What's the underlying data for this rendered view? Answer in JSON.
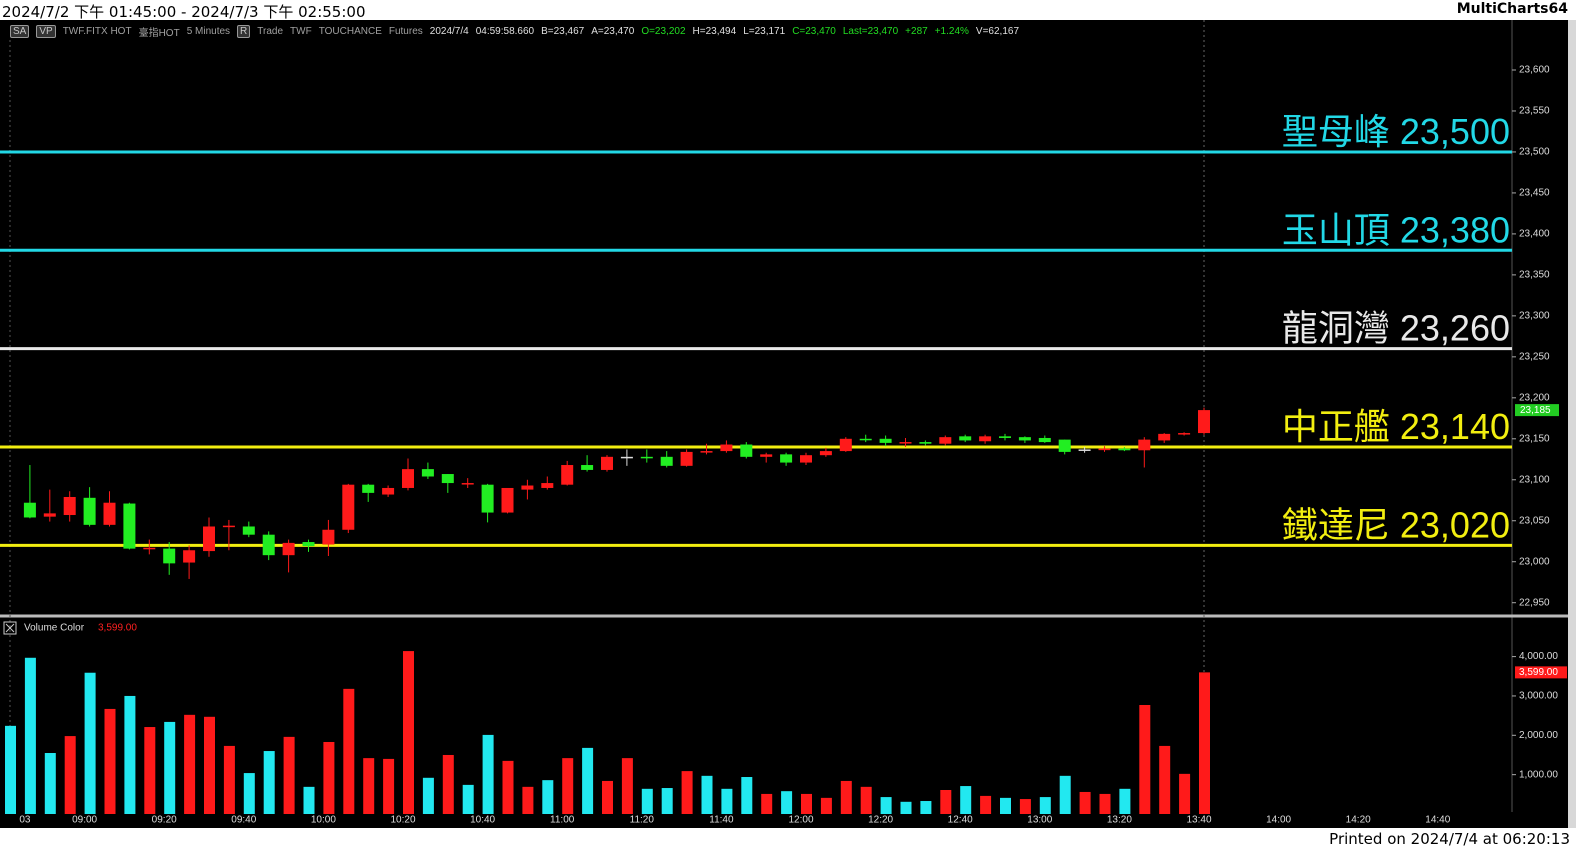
{
  "header": {
    "title": "2024/7/2 下午 01:45:00 - 2024/7/3 下午 02:55:00",
    "app": "MultiCharts64"
  },
  "toolbar": [
    {
      "text": "SA",
      "color": "#c8c8c8",
      "boxed": true
    },
    {
      "text": "VP",
      "color": "#c8c8c8",
      "boxed": true
    },
    {
      "text": "TWF.FITX HOT",
      "color": "#a0a0a0"
    },
    {
      "text": "臺指HOT",
      "color": "#a0a0a0"
    },
    {
      "text": "5 Minutes",
      "color": "#a0a0a0"
    },
    {
      "text": "R",
      "color": "#c8c8c8",
      "boxed": true
    },
    {
      "text": "Trade",
      "color": "#a0a0a0"
    },
    {
      "text": "TWF",
      "color": "#a0a0a0"
    },
    {
      "text": "TOUCHANCE",
      "color": "#a0a0a0"
    },
    {
      "text": "Futures",
      "color": "#a0a0a0"
    },
    {
      "text": "2024/7/4",
      "color": "#e0e0e0"
    },
    {
      "text": "04:59:58.660",
      "color": "#e0e0e0"
    },
    {
      "text": "B=23,467",
      "color": "#e0e0e0"
    },
    {
      "text": "A=23,470",
      "color": "#e0e0e0"
    },
    {
      "text": "O=23,202",
      "color": "#22dd22"
    },
    {
      "text": "H=23,494",
      "color": "#e0e0e0"
    },
    {
      "text": "L=23,171",
      "color": "#e0e0e0"
    },
    {
      "text": "C=23,470",
      "color": "#22dd22"
    },
    {
      "text": "Last=23,470",
      "color": "#22dd22"
    },
    {
      "text": "+287",
      "color": "#22dd22"
    },
    {
      "text": "+1.24%",
      "color": "#22dd22"
    },
    {
      "text": "V=62,167",
      "color": "#e0e0e0"
    }
  ],
  "footer": "Printed on 2024/7/4 at 06:20:13",
  "chart_data": [
    {
      "type": "candlestick",
      "up_color": "#ff1a1a",
      "down_color": "#22ee22",
      "open": [
        null,
        23072,
        23055,
        23057,
        23078,
        23045,
        23071,
        23016,
        23016,
        22999,
        23013,
        23043,
        23043,
        23033,
        23008,
        23024,
        23021,
        23039,
        23094,
        23082,
        23090,
        23113,
        23107,
        23095,
        23094,
        23060,
        23088,
        23090,
        23094,
        23118,
        23112,
        23128,
        23128,
        23128,
        23117,
        23134,
        23135,
        23143,
        23128,
        23131,
        23121,
        23130,
        23135,
        23150,
        23150,
        23145,
        23146,
        23144,
        23153,
        23147,
        23153,
        23152,
        23151,
        23149,
        23137,
        23137,
        23138,
        23136,
        23148,
        23156,
        23157
      ],
      "high": [
        null,
        23118,
        23088,
        23086,
        23091,
        23086,
        23072,
        23027,
        23024,
        23020,
        23054,
        23051,
        23049,
        23037,
        23027,
        23027,
        23051,
        23095,
        23095,
        23093,
        23126,
        23121,
        23107,
        23102,
        23095,
        23090,
        23100,
        23104,
        23123,
        23130,
        23130,
        23137,
        23137,
        23135,
        23137,
        23144,
        23148,
        23146,
        23133,
        23133,
        23133,
        23139,
        23152,
        23155,
        23154,
        23151,
        23148,
        23154,
        23155,
        23155,
        23156,
        23153,
        23154,
        23149,
        23140,
        23141,
        23140,
        23152,
        23157,
        23158,
        23188
      ],
      "low": [
        null,
        23053,
        23049,
        23049,
        23043,
        23043,
        23015,
        23009,
        22984,
        22979,
        23006,
        23014,
        23030,
        23002,
        22987,
        23012,
        23007,
        23035,
        23073,
        23079,
        23087,
        23101,
        23084,
        23090,
        23048,
        23059,
        23076,
        23088,
        23093,
        23110,
        23110,
        23117,
        23121,
        23115,
        23116,
        23131,
        23133,
        23126,
        23121,
        23117,
        23118,
        23128,
        23134,
        23146,
        23141,
        23140,
        23142,
        23142,
        23146,
        23144,
        23148,
        23145,
        23145,
        23131,
        23133,
        23134,
        23135,
        23115,
        23145,
        23154,
        23155
      ],
      "close": [
        null,
        23054,
        23059,
        23079,
        23045,
        23072,
        23016,
        23017,
        22998,
        23014,
        23043,
        23044,
        23033,
        23008,
        23023,
        23019,
        23039,
        23094,
        23084,
        23090,
        23113,
        23104,
        23096,
        23096,
        23060,
        23090,
        23093,
        23096,
        23118,
        23112,
        23128,
        23128,
        23127,
        23117,
        23134,
        23135,
        23143,
        23128,
        23131,
        23121,
        23130,
        23135,
        23150,
        23149,
        23145,
        23146,
        23144,
        23152,
        23148,
        23153,
        23151,
        23148,
        23146,
        23134,
        23137,
        23138,
        23136,
        23149,
        23156,
        23157,
        23185
      ],
      "ylim": [
        22935,
        23661
      ],
      "yticks": [
        {
          "value": 22950,
          "label": "22,950"
        },
        {
          "value": 23000,
          "label": "23,000"
        },
        {
          "value": 23050,
          "label": "23,050"
        },
        {
          "value": 23100,
          "label": "23,100"
        },
        {
          "value": 23150,
          "label": "23,150"
        },
        {
          "value": 23200,
          "label": "23,200"
        },
        {
          "value": 23250,
          "label": "23,250"
        },
        {
          "value": 23300,
          "label": "23,300"
        },
        {
          "value": 23350,
          "label": "23,350"
        },
        {
          "value": 23400,
          "label": "23,400"
        },
        {
          "value": 23450,
          "label": "23,450"
        },
        {
          "value": 23500,
          "label": "23,500"
        },
        {
          "value": 23550,
          "label": "23,550"
        },
        {
          "value": 23600,
          "label": "23,600"
        }
      ],
      "lines": [
        {
          "name": "聖母峰",
          "value": 23500,
          "label": "23,500",
          "color": "#22d8e6"
        },
        {
          "name": "玉山頂",
          "value": 23380,
          "label": "23,380",
          "color": "#22d8e6"
        },
        {
          "name": "龍洞灣",
          "value": 23260,
          "label": "23,260",
          "color": "#e8e8e8"
        },
        {
          "name": "中正艦",
          "value": 23140,
          "label": "23,140",
          "color": "#f2ee10"
        },
        {
          "name": "鐵達尼",
          "value": 23020,
          "label": "23,020",
          "color": "#f2ee10"
        }
      ],
      "last": {
        "value": 23185,
        "label": "23,185",
        "color": "#22cc22"
      }
    },
    {
      "type": "bar",
      "title": "Volume Color",
      "categories": [
        null,
        "03",
        null,
        null,
        "09:00",
        null,
        null,
        null,
        "09:20",
        null,
        null,
        null,
        "09:40",
        null,
        null,
        null,
        "10:00",
        null,
        null,
        null,
        "10:20",
        null,
        null,
        null,
        "10:40",
        null,
        null,
        null,
        "11:00",
        null,
        null,
        null,
        "11:20",
        null,
        null,
        null,
        "11:40",
        null,
        null,
        null,
        "12:00",
        null,
        null,
        null,
        "12:20",
        null,
        null,
        null,
        "12:40",
        null,
        null,
        null,
        "13:00",
        null,
        null,
        null,
        "13:20",
        null,
        null,
        null,
        "13:40",
        null,
        null,
        null,
        "14:00",
        null,
        null,
        null,
        "14:20",
        null,
        null,
        null,
        "14:40",
        null,
        null,
        null
      ],
      "values": [
        2240,
        3970,
        1550,
        1980,
        3590,
        2670,
        3000,
        2210,
        2340,
        2520,
        2470,
        1730,
        1040,
        1600,
        1960,
        690,
        1830,
        3180,
        1420,
        1400,
        4140,
        920,
        1500,
        740,
        2010,
        1350,
        690,
        860,
        1420,
        1680,
        840,
        1420,
        640,
        660,
        1090,
        970,
        640,
        940,
        510,
        580,
        510,
        410,
        840,
        690,
        430,
        310,
        330,
        610,
        710,
        460,
        410,
        380,
        430,
        970,
        560,
        510,
        640,
        2770,
        1730,
        1020,
        3599,
        null,
        null,
        null,
        null,
        null,
        null,
        null,
        null,
        null,
        null,
        null,
        null,
        null,
        null,
        null
      ],
      "colors": [
        "#22e8f0",
        "#22e8f0",
        "#22e8f0",
        "#ff1a1a",
        "#22e8f0",
        "#ff1a1a",
        "#22e8f0",
        "#ff1a1a",
        "#22e8f0",
        "#ff1a1a",
        "#ff1a1a",
        "#ff1a1a",
        "#22e8f0",
        "#22e8f0",
        "#ff1a1a",
        "#22e8f0",
        "#ff1a1a",
        "#ff1a1a",
        "#ff1a1a",
        "#ff1a1a",
        "#ff1a1a",
        "#22e8f0",
        "#ff1a1a",
        "#22e8f0",
        "#22e8f0",
        "#ff1a1a",
        "#ff1a1a",
        "#22e8f0",
        "#ff1a1a",
        "#22e8f0",
        "#ff1a1a",
        "#ff1a1a",
        "#22e8f0",
        "#22e8f0",
        "#ff1a1a",
        "#22e8f0",
        "#22e8f0",
        "#22e8f0",
        "#ff1a1a",
        "#22e8f0",
        "#ff1a1a",
        "#ff1a1a",
        "#ff1a1a",
        "#ff1a1a",
        "#22e8f0",
        "#22e8f0",
        "#22e8f0",
        "#ff1a1a",
        "#22e8f0",
        "#ff1a1a",
        "#22e8f0",
        "#ff1a1a",
        "#22e8f0",
        "#22e8f0",
        "#ff1a1a",
        "#ff1a1a",
        "#22e8f0",
        "#ff1a1a",
        "#ff1a1a",
        "#ff1a1a",
        "#ff1a1a",
        null,
        null,
        null,
        null,
        null,
        null,
        null,
        null,
        null,
        null,
        null,
        null,
        null,
        null,
        null
      ],
      "ylim": [
        0,
        4930
      ],
      "yticks": [
        {
          "value": 1000,
          "label": "1,000.00"
        },
        {
          "value": 2000,
          "label": "2,000.00"
        },
        {
          "value": 3000,
          "label": "3,000.00"
        },
        {
          "value": 4000,
          "label": "4,000.00"
        }
      ],
      "last": {
        "value": 3599,
        "label": "3,599.00",
        "color": "#ff1a1a"
      }
    }
  ]
}
